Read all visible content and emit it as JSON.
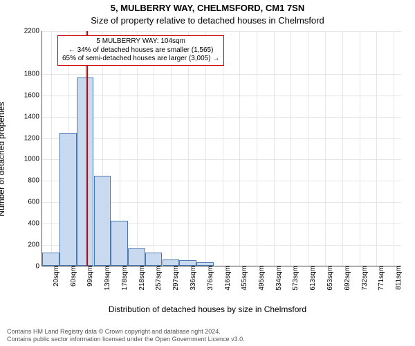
{
  "title": {
    "text": "5, MULBERRY WAY, CHELMSFORD, CM1 7SN",
    "fontsize": 13,
    "color": "#000000"
  },
  "subtitle": {
    "text": "Size of property relative to detached houses in Chelmsford",
    "fontsize": 13,
    "color": "#000000"
  },
  "chart": {
    "type": "histogram",
    "background_color": "#ffffff",
    "grid_color": "#e6e6e6",
    "axis_color": "#555555",
    "bar_fill": "#c9d9f0",
    "bar_border": "#4a78b5",
    "refline_color": "#cc0000",
    "refline_x": 104,
    "ylabel": "Number of detached properties",
    "xlabel": "Distribution of detached houses by size in Chelmsford",
    "label_fontsize": 12,
    "tick_fontsize": 10,
    "xlim_min": 0,
    "xlim_max": 830,
    "ylim_min": 0,
    "ylim_max": 2200,
    "yticks": [
      0,
      200,
      400,
      600,
      800,
      1000,
      1200,
      1400,
      1600,
      1800,
      2200
    ],
    "xticks": [
      "20sqm",
      "60sqm",
      "99sqm",
      "139sqm",
      "178sqm",
      "218sqm",
      "257sqm",
      "297sqm",
      "336sqm",
      "376sqm",
      "416sqm",
      "455sqm",
      "495sqm",
      "534sqm",
      "573sqm",
      "613sqm",
      "653sqm",
      "692sqm",
      "732sqm",
      "771sqm",
      "811sqm"
    ],
    "xtick_values": [
      20,
      60,
      99,
      139,
      178,
      218,
      257,
      297,
      336,
      376,
      416,
      455,
      495,
      534,
      573,
      613,
      653,
      692,
      732,
      771,
      811
    ],
    "bars": [
      {
        "x": 20,
        "value": 120
      },
      {
        "x": 60,
        "value": 1240
      },
      {
        "x": 99,
        "value": 1760
      },
      {
        "x": 139,
        "value": 840
      },
      {
        "x": 178,
        "value": 420
      },
      {
        "x": 218,
        "value": 160
      },
      {
        "x": 257,
        "value": 120
      },
      {
        "x": 297,
        "value": 60
      },
      {
        "x": 336,
        "value": 50
      },
      {
        "x": 376,
        "value": 30
      },
      {
        "x": 416,
        "value": 0
      },
      {
        "x": 455,
        "value": 0
      },
      {
        "x": 495,
        "value": 0
      },
      {
        "x": 534,
        "value": 0
      },
      {
        "x": 573,
        "value": 0
      },
      {
        "x": 613,
        "value": 0
      },
      {
        "x": 653,
        "value": 0
      },
      {
        "x": 692,
        "value": 0
      },
      {
        "x": 732,
        "value": 0
      },
      {
        "x": 771,
        "value": 0
      },
      {
        "x": 811,
        "value": 0
      }
    ],
    "bar_width_sqm": 39
  },
  "annotation": {
    "line1": "5 MULBERRY WAY: 104sqm",
    "line2": "← 34% of detached houses are smaller (1,565)",
    "line3": "65% of semi-detached houses are larger (3,005) →",
    "fontsize": 10,
    "border_color": "#cc0000",
    "background": "#ffffff",
    "text_color": "#000000"
  },
  "footer": {
    "line1": "Contains HM Land Registry data © Crown copyright and database right 2024.",
    "line2": "Contains public sector information licensed under the Open Government Licence v3.0.",
    "fontsize": 9,
    "color": "#555555"
  }
}
